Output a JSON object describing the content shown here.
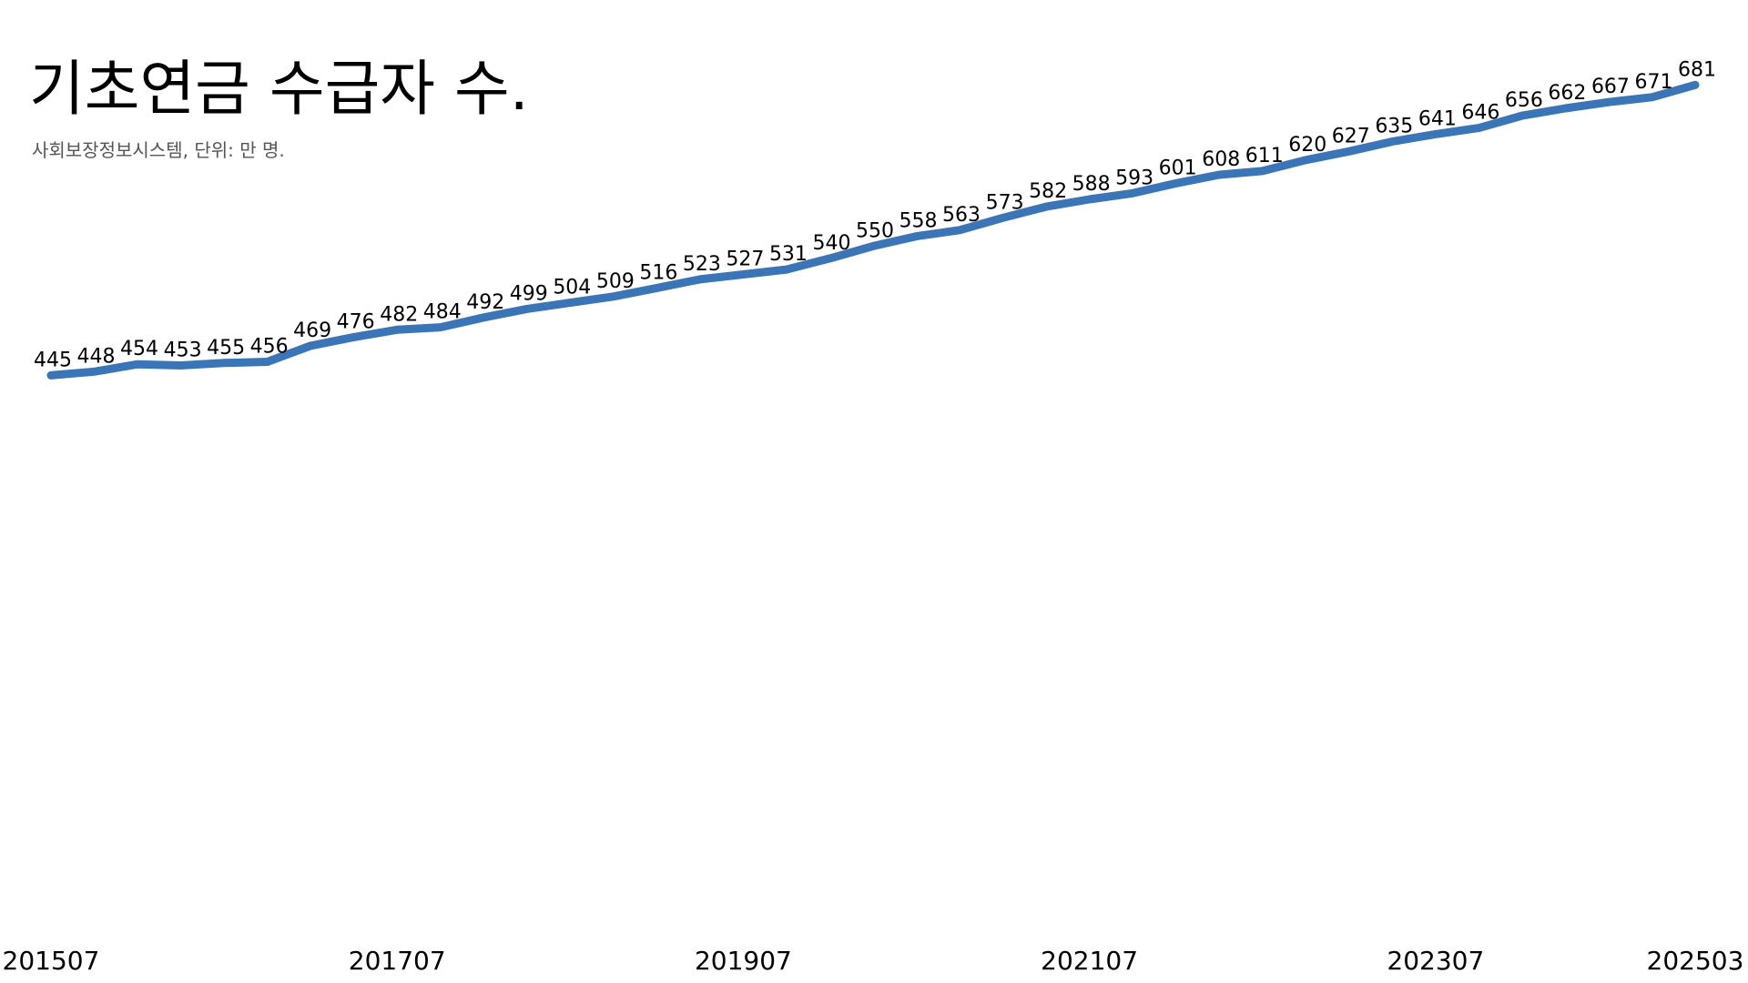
{
  "chart_data": {
    "type": "line",
    "title": "기초연금 수급자 수.",
    "subtitle": "사회보장정보시스템, 단위: 만 명.",
    "categories": [
      "201507",
      null,
      null,
      null,
      null,
      null,
      null,
      null,
      "201707",
      null,
      null,
      null,
      null,
      null,
      null,
      null,
      "201907",
      null,
      null,
      null,
      null,
      null,
      null,
      null,
      "202107",
      null,
      null,
      null,
      null,
      null,
      null,
      null,
      "202307",
      null,
      null,
      null,
      null,
      null,
      "202503"
    ],
    "series": [
      {
        "name": "기초연금 수급자 수",
        "color": "#3a75b8",
        "values": [
          445,
          448,
          454,
          453,
          455,
          456,
          469,
          476,
          482,
          484,
          492,
          499,
          504,
          509,
          516,
          523,
          527,
          531,
          540,
          550,
          558,
          563,
          573,
          582,
          588,
          593,
          601,
          608,
          611,
          620,
          627,
          635,
          641,
          646,
          656,
          662,
          667,
          671,
          681
        ]
      }
    ],
    "ylim": [
      0,
      750
    ]
  }
}
